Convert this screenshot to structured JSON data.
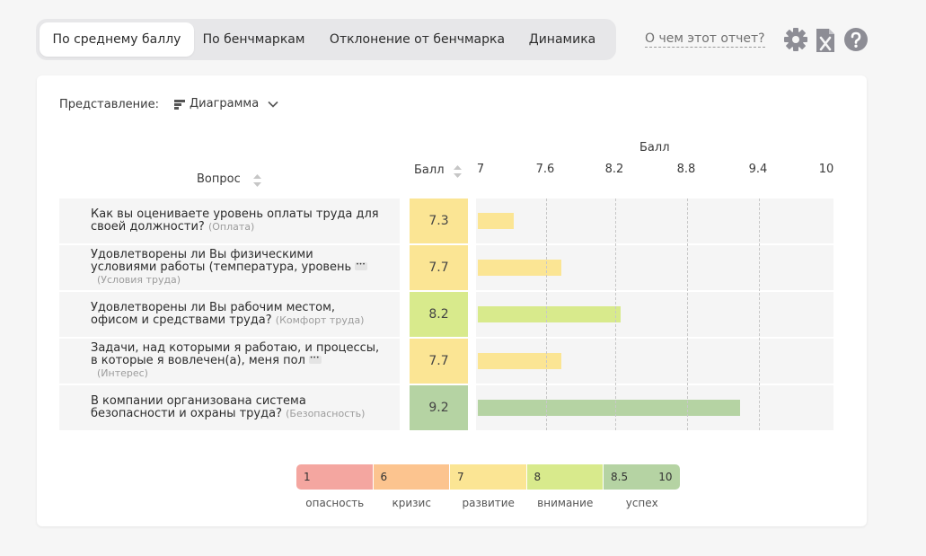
{
  "tabs": [
    {
      "label": "По среднему баллу",
      "active": true
    },
    {
      "label": "По бенчмаркам",
      "active": false
    },
    {
      "label": "Отклонение от бенчмарка",
      "active": false
    },
    {
      "label": "Динамика",
      "active": false
    }
  ],
  "about_link": "О чем этот отчет?",
  "tools": [
    "gear-icon",
    "excel-icon",
    "help-icon"
  ],
  "view": {
    "label": "Представление:",
    "selected": "Диаграмма"
  },
  "columns": {
    "question": "Вопрос",
    "score": "Балл",
    "chart_title": "Балл"
  },
  "chart_data": {
    "type": "bar",
    "orientation": "horizontal",
    "title": "Балл",
    "xlim": [
      7,
      10
    ],
    "ticks": [
      "7",
      "7.6",
      "8.2",
      "8.8",
      "9.4",
      "10"
    ],
    "tick_values": [
      7,
      7.6,
      8.2,
      8.8,
      9.4,
      10
    ],
    "categories": [
      "Как вы оцениваете уровень оплаты труда для своей должности?",
      "Удовлетворены ли Вы физическими условиями работы (температура, уровень",
      "Удовлетворены ли Вы рабочим местом, офисом и средствами труда?",
      "Задачи, над которыми я работаю, и процессы, в которые я вовлечен(а), меня пол",
      "В компании организована система безопасности и охраны труда?"
    ],
    "values": [
      7.3,
      7.7,
      8.2,
      7.7,
      9.2
    ],
    "grid": true
  },
  "rows": [
    {
      "line1": "Как вы оцениваете уровень оплаты труда для",
      "line2": "своей должности?",
      "category": "(Оплата)",
      "score": "7.3",
      "value": 7.3,
      "color": "#fbe594",
      "layout": "inline"
    },
    {
      "line1": "Удовлетворены ли Вы физическими",
      "line2": "условиями работы (температура, уровень",
      "category": "(Условия труда)",
      "score": "7.7",
      "value": 7.7,
      "color": "#fbe594",
      "layout": "ellipsis"
    },
    {
      "line1": "Удовлетворены ли Вы рабочим местом,",
      "line2": "офисом и средствами труда?",
      "category": "(Комфорт труда)",
      "score": "8.2",
      "value": 8.2,
      "color": "#d8ea8c",
      "layout": "inline"
    },
    {
      "line1": "Задачи, над которыми я работаю, и процессы,",
      "line2": "в которые я вовлечен(а), меня пол",
      "category": "(Интерес)",
      "score": "7.7",
      "value": 7.7,
      "color": "#fbe594",
      "layout": "ellipsis"
    },
    {
      "line1": "В компании организована система",
      "line2": "безопасности и охраны труда?",
      "category": "(Безопасность)",
      "score": "9.2",
      "value": 9.2,
      "color": "#b5d3a3",
      "layout": "inline"
    }
  ],
  "legend": [
    {
      "value": "1",
      "value2": "",
      "caption": "опасность",
      "color": "#f4a6a0"
    },
    {
      "value": "6",
      "value2": "",
      "caption": "кризис",
      "color": "#fcc48f"
    },
    {
      "value": "7",
      "value2": "",
      "caption": "развитие",
      "color": "#fbe594"
    },
    {
      "value": "8",
      "value2": "",
      "caption": "внимание",
      "color": "#d8ea8c"
    },
    {
      "value": "8.5",
      "value2": "10",
      "caption": "успех",
      "color": "#b5d3a3"
    }
  ]
}
